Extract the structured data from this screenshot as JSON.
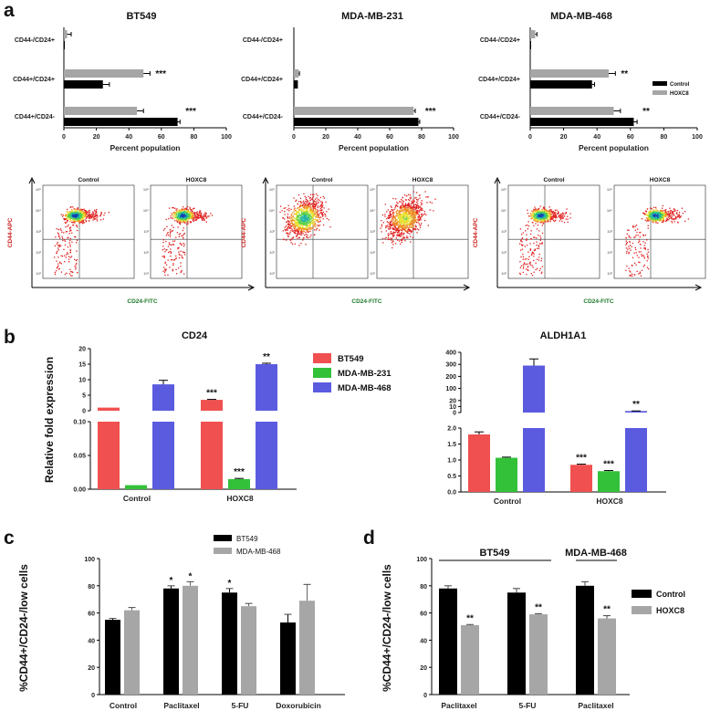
{
  "panel_letters": [
    "a",
    "b",
    "c",
    "d"
  ],
  "colors": {
    "control": "#000000",
    "hoxc8": "#a6a6a6",
    "bt549": "#f0504f",
    "mda231": "#33c13a",
    "mda468": "#5b5be0",
    "cd44_label": "#cc1f1f",
    "cd24_label": "#1e7a2a"
  },
  "chart_data": [
    {
      "type": "bar",
      "orientation": "horizontal",
      "panel": "a",
      "title": "BT549",
      "categories": [
        "CD44-/CD24+",
        "CD44+/CD24+",
        "CD44+/CD24-"
      ],
      "xlabel": "Percent population",
      "xlim": [
        0,
        100
      ],
      "xticks": [
        "0",
        "20",
        "40",
        "60",
        "80",
        "100"
      ],
      "series": [
        {
          "name": "Control",
          "values": [
            0.3,
            24,
            70
          ],
          "errors": [
            0,
            4,
            1.5
          ]
        },
        {
          "name": "HOXC8",
          "values": [
            2,
            49,
            45
          ],
          "errors": [
            2.5,
            4,
            4
          ]
        }
      ],
      "significance": [
        "",
        "***",
        "***"
      ]
    },
    {
      "type": "bar",
      "orientation": "horizontal",
      "panel": "a",
      "title": "MDA-MB-231",
      "categories": [
        "CD44-/CD24+",
        "CD44+/CD24+",
        "CD44+/CD24-"
      ],
      "xlabel": "Percent population",
      "xlim": [
        0,
        100
      ],
      "xticks": [
        "0",
        "20",
        "40",
        "60",
        "80",
        "100"
      ],
      "series": [
        {
          "name": "Control",
          "values": [
            0,
            2.5,
            78
          ],
          "errors": [
            0,
            0,
            0.8
          ]
        },
        {
          "name": "HOXC8",
          "values": [
            0,
            3,
            75
          ],
          "errors": [
            0,
            0.5,
            1
          ]
        }
      ],
      "significance": [
        "",
        "",
        "***"
      ]
    },
    {
      "type": "bar",
      "orientation": "horizontal",
      "panel": "a",
      "title": "MDA-MB-468",
      "categories": [
        "CD44-/CD24+",
        "CD44+/CD24+",
        "CD44+/CD24-"
      ],
      "xlabel": "Percent population",
      "xlim": [
        0,
        100
      ],
      "xticks": [
        "0",
        "20",
        "40",
        "60",
        "80",
        "100"
      ],
      "series": [
        {
          "name": "Control",
          "values": [
            0.5,
            37,
            62
          ],
          "errors": [
            0,
            1.5,
            2
          ]
        },
        {
          "name": "HOXC8",
          "values": [
            3,
            47,
            50
          ],
          "errors": [
            1,
            4,
            4
          ]
        }
      ],
      "significance": [
        "",
        "**",
        "**"
      ],
      "legend": [
        "Control",
        "HOXC8"
      ]
    },
    {
      "type": "bar",
      "panel": "b",
      "title": "CD24",
      "ylabel": "Relative fold expression",
      "categories": [
        "Control",
        "HOXC8"
      ],
      "broken_axis": true,
      "ylim_lower": [
        0,
        0.1
      ],
      "yticks_lower": [
        "0.00",
        "0.05",
        "0.10"
      ],
      "ylim_upper": [
        0,
        20
      ],
      "yticks_upper": [
        "0",
        "5",
        "10",
        "15",
        "20"
      ],
      "series": [
        {
          "name": "BT549",
          "values": [
            1,
            3.5
          ],
          "errors": [
            0,
            0.15
          ]
        },
        {
          "name": "MDA-MB-231",
          "values": [
            0.006,
            0.015
          ],
          "errors": [
            0,
            0.001
          ]
        },
        {
          "name": "MDA-MB-468",
          "values": [
            8.5,
            15
          ],
          "errors": [
            1.3,
            0.3
          ]
        }
      ],
      "significance": [
        [
          "",
          "",
          ""
        ],
        [
          "***",
          "***",
          "**"
        ]
      ],
      "legend": [
        "BT549",
        "MDA-MB-231",
        "MDA-MB-468"
      ]
    },
    {
      "type": "bar",
      "panel": "b",
      "title": "ALDH1A1",
      "categories": [
        "Control",
        "HOXC8"
      ],
      "broken_axis": true,
      "ylim_lower": [
        0,
        2.0
      ],
      "yticks_lower": [
        "0.0",
        "0.5",
        "1.0",
        "1.5",
        "2.0"
      ],
      "ylim_upper": [
        0,
        400
      ],
      "yticks_upper": [
        "0",
        "10",
        "20",
        "100",
        "200",
        "300",
        "400"
      ],
      "series": [
        {
          "name": "BT549",
          "values": [
            1.8,
            0.85
          ],
          "errors": [
            0.08,
            0.02
          ]
        },
        {
          "name": "MDA-MB-231",
          "values": [
            1.07,
            0.65
          ],
          "errors": [
            0.02,
            0.02
          ]
        },
        {
          "name": "MDA-MB-468",
          "values": [
            290,
            2.5
          ],
          "errors": [
            55,
            0.2
          ]
        }
      ],
      "significance": [
        [
          "",
          "",
          ""
        ],
        [
          "***",
          "***",
          "**"
        ]
      ]
    },
    {
      "type": "bar",
      "panel": "c",
      "ylabel": "%CD44+/CD24-/low cells",
      "categories": [
        "Control",
        "Paclitaxel",
        "5-FU",
        "Doxorubicin"
      ],
      "ylim": [
        0,
        100
      ],
      "yticks": [
        "0",
        "20",
        "40",
        "60",
        "80",
        "100"
      ],
      "series": [
        {
          "name": "BT549",
          "values": [
            55,
            78,
            75,
            53
          ],
          "errors": [
            1,
            2,
            3,
            6
          ]
        },
        {
          "name": "MDA-MB-468",
          "values": [
            62,
            80,
            65,
            69
          ],
          "errors": [
            2,
            3,
            2,
            12
          ]
        }
      ],
      "significance": [
        [
          "",
          ""
        ],
        [
          "*",
          "*"
        ],
        [
          "*",
          ""
        ],
        [
          "",
          ""
        ]
      ],
      "legend": [
        "BT549",
        "MDA-MB-468"
      ]
    },
    {
      "type": "bar",
      "panel": "d",
      "ylabel": "%CD44+/CD24-/low cells",
      "categories": [
        "Paclitaxel",
        "5-FU",
        "Paclitaxel"
      ],
      "groups": [
        "BT549",
        "MDA-MB-468"
      ],
      "ylim": [
        0,
        100
      ],
      "yticks": [
        "0",
        "20",
        "40",
        "60",
        "80",
        "100"
      ],
      "series": [
        {
          "name": "Control",
          "values": [
            78,
            75,
            80
          ],
          "errors": [
            2,
            3,
            3
          ]
        },
        {
          "name": "HOXC8",
          "values": [
            51,
            59,
            56
          ],
          "errors": [
            0.5,
            0.5,
            2
          ]
        }
      ],
      "significance": [
        [
          "",
          "**"
        ],
        [
          "",
          "**"
        ],
        [
          "",
          "**"
        ]
      ],
      "legend": [
        "Control",
        "HOXC8"
      ]
    }
  ],
  "flow": {
    "sample_labels": [
      "Control",
      "HOXC8"
    ],
    "ylabel": "CD44-APC",
    "xlabel": "CD24-FITC"
  }
}
